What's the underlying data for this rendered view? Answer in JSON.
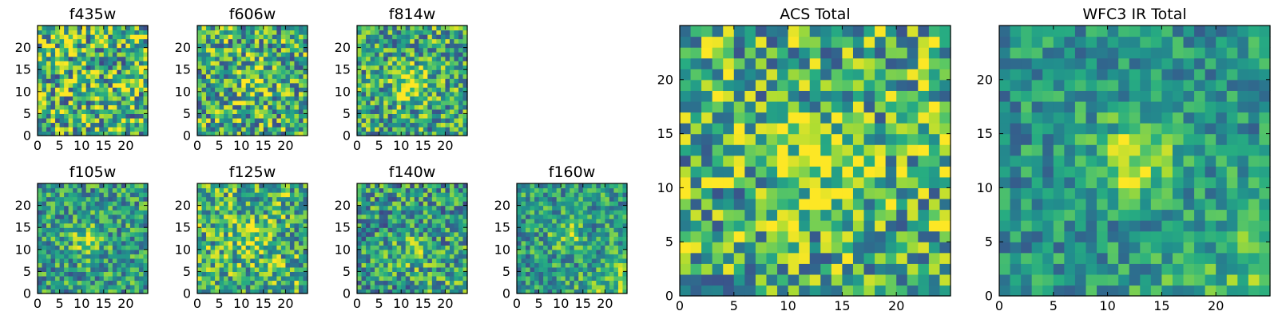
{
  "chart_data": {
    "type": "heatmap",
    "colormap": "viridis",
    "grid_size": 25,
    "panels": [
      {
        "id": "f435w",
        "title": "f435w",
        "xticks": [
          0,
          5,
          10,
          15,
          20
        ],
        "yticks": [
          0,
          5,
          10,
          15,
          20
        ],
        "xlim": [
          0,
          25
        ],
        "ylim": [
          0,
          25
        ],
        "center": [
          12,
          12
        ],
        "peak": 0.0,
        "noise": 0.55,
        "base": 0.66,
        "grad": 0.0,
        "seed": 11
      },
      {
        "id": "f606w",
        "title": "f606w",
        "xticks": [
          0,
          5,
          10,
          15,
          20
        ],
        "yticks": [
          0,
          5,
          10,
          15,
          20
        ],
        "xlim": [
          0,
          25
        ],
        "ylim": [
          0,
          25
        ],
        "center": [
          12,
          12
        ],
        "peak": 0.22,
        "noise": 0.5,
        "base": 0.62,
        "grad": 0.0,
        "seed": 23
      },
      {
        "id": "f814w",
        "title": "f814w",
        "xticks": [
          0,
          5,
          10,
          15,
          20
        ],
        "yticks": [
          0,
          5,
          10,
          15,
          20
        ],
        "xlim": [
          0,
          25
        ],
        "ylim": [
          0,
          25
        ],
        "center": [
          12,
          11
        ],
        "peak": 0.38,
        "noise": 0.45,
        "base": 0.6,
        "grad": 0.0,
        "seed": 37
      },
      {
        "id": "f105w",
        "title": "f105w",
        "xticks": [
          0,
          5,
          10,
          15,
          20
        ],
        "yticks": [
          0,
          5,
          10,
          15,
          20
        ],
        "xlim": [
          0,
          25
        ],
        "ylim": [
          0,
          25
        ],
        "center": [
          11,
          12
        ],
        "peak": 0.3,
        "noise": 0.38,
        "base": 0.55,
        "grad": 0.0,
        "seed": 41
      },
      {
        "id": "f125w",
        "title": "f125w",
        "xticks": [
          0,
          5,
          10,
          15,
          20
        ],
        "yticks": [
          0,
          5,
          10,
          15,
          20
        ],
        "xlim": [
          0,
          25
        ],
        "ylim": [
          0,
          25
        ],
        "center": [
          12,
          12
        ],
        "peak": 0.22,
        "noise": 0.45,
        "base": 0.65,
        "grad": 0.0,
        "seed": 53
      },
      {
        "id": "f140w",
        "title": "f140w",
        "xticks": [
          0,
          5,
          10,
          15,
          20
        ],
        "yticks": [
          0,
          5,
          10,
          15,
          20
        ],
        "xlim": [
          0,
          25
        ],
        "ylim": [
          0,
          25
        ],
        "center": [
          12,
          9
        ],
        "peak": 0.22,
        "noise": 0.42,
        "base": 0.55,
        "grad": 0.1,
        "seed": 67
      },
      {
        "id": "f160w",
        "title": "f160w",
        "xticks": [
          0,
          5,
          10,
          15,
          20
        ],
        "yticks": [
          0,
          5,
          10,
          15,
          20
        ],
        "xlim": [
          0,
          25
        ],
        "ylim": [
          0,
          25
        ],
        "center": [
          11,
          13
        ],
        "peak": 0.22,
        "noise": 0.35,
        "base": 0.55,
        "grad": 0.25,
        "seed": 79
      },
      {
        "id": "acs-total",
        "title": "ACS Total",
        "xticks": [
          0,
          5,
          10,
          15,
          20
        ],
        "yticks": [
          0,
          5,
          10,
          15,
          20
        ],
        "xlim": [
          0,
          25
        ],
        "ylim": [
          0,
          25
        ],
        "center": [
          12,
          12
        ],
        "peak": 0.3,
        "noise": 0.48,
        "base": 0.64,
        "grad": 0.0,
        "seed": 97
      },
      {
        "id": "wfc3-ir-total",
        "title": "WFC3 IR Total",
        "xticks": [
          0,
          5,
          10,
          15,
          20
        ],
        "yticks": [
          0,
          5,
          10,
          15,
          20
        ],
        "xlim": [
          0,
          25
        ],
        "ylim": [
          0,
          25
        ],
        "center": [
          12,
          12
        ],
        "peak": 0.38,
        "noise": 0.28,
        "base": 0.52,
        "grad": 0.22,
        "seed": 113
      }
    ]
  }
}
